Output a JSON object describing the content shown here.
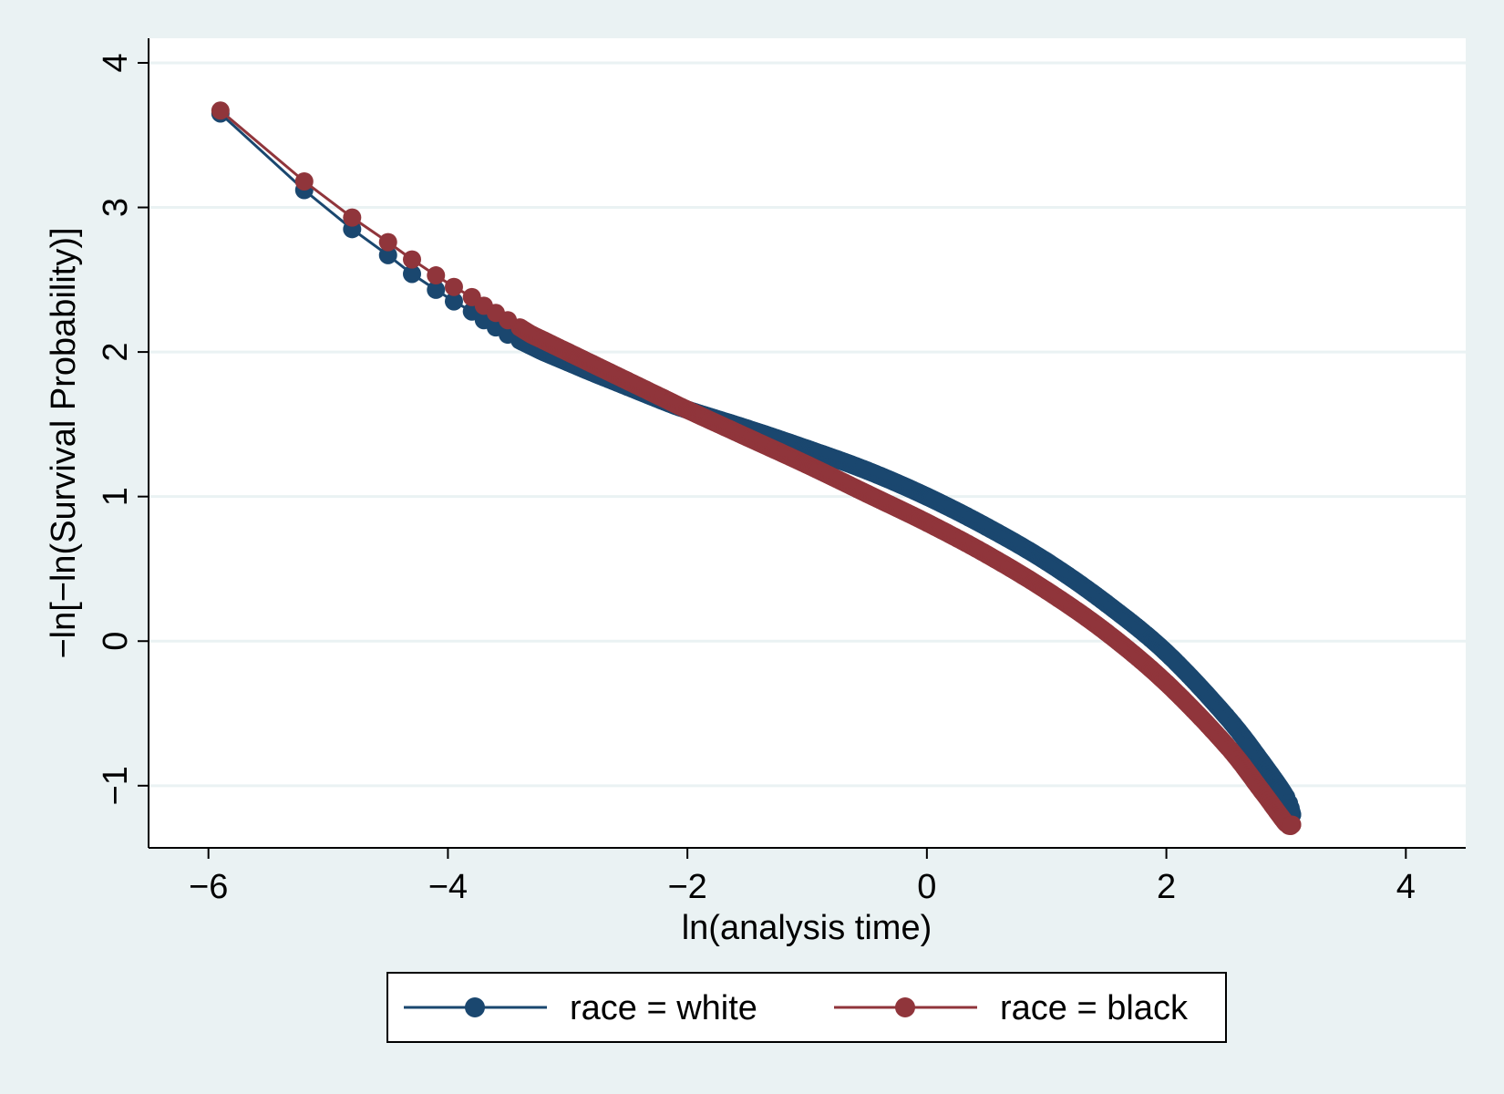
{
  "chart_data": {
    "type": "line",
    "xlabel": "ln(analysis time)",
    "ylabel": "−ln[−ln(Survival Probability)]",
    "xlim": [
      -6.5,
      4.5
    ],
    "ylim": [
      -1.43,
      4.17
    ],
    "x_ticks": [
      -6,
      -4,
      -2,
      0,
      2,
      4
    ],
    "x_tick_labels": [
      "−6",
      "−4",
      "−2",
      "0",
      "2",
      "4"
    ],
    "y_ticks": [
      -1,
      0,
      1,
      2,
      3,
      4
    ],
    "y_tick_labels": [
      "−1",
      "0",
      "1",
      "2",
      "3",
      "4"
    ],
    "grid": "horizontal",
    "legend_position": "bottom",
    "series": [
      {
        "name": "race = white",
        "color": "#1a476f",
        "points": [
          [
            -5.9,
            3.65
          ],
          [
            -5.2,
            3.12
          ],
          [
            -4.8,
            2.85
          ],
          [
            -4.5,
            2.67
          ],
          [
            -4.3,
            2.54
          ],
          [
            -4.1,
            2.43
          ],
          [
            -3.95,
            2.35
          ],
          [
            -3.8,
            2.28
          ],
          [
            -3.7,
            2.22
          ],
          [
            -3.6,
            2.17
          ],
          [
            -3.5,
            2.12
          ],
          [
            -3.4,
            2.08
          ],
          [
            -3.3,
            2.04
          ],
          [
            -3.2,
            2.0
          ],
          [
            -3.0,
            1.93
          ],
          [
            -2.8,
            1.86
          ],
          [
            -2.5,
            1.76
          ],
          [
            -2.2,
            1.66
          ],
          [
            -2.0,
            1.6
          ],
          [
            -1.5,
            1.47
          ],
          [
            -1.0,
            1.33
          ],
          [
            -0.5,
            1.18
          ],
          [
            0.0,
            1.0
          ],
          [
            0.5,
            0.79
          ],
          [
            1.0,
            0.55
          ],
          [
            1.5,
            0.26
          ],
          [
            2.0,
            -0.08
          ],
          [
            2.5,
            -0.52
          ],
          [
            2.8,
            -0.84
          ],
          [
            3.0,
            -1.08
          ],
          [
            3.05,
            -1.2
          ]
        ]
      },
      {
        "name": "race = black",
        "color": "#90353b",
        "points": [
          [
            -5.9,
            3.67
          ],
          [
            -5.2,
            3.18
          ],
          [
            -4.8,
            2.93
          ],
          [
            -4.5,
            2.76
          ],
          [
            -4.3,
            2.64
          ],
          [
            -4.1,
            2.53
          ],
          [
            -3.95,
            2.45
          ],
          [
            -3.8,
            2.38
          ],
          [
            -3.7,
            2.32
          ],
          [
            -3.6,
            2.27
          ],
          [
            -3.5,
            2.22
          ],
          [
            -3.4,
            2.17
          ],
          [
            -3.3,
            2.12
          ],
          [
            -3.2,
            2.08
          ],
          [
            -3.0,
            2.0
          ],
          [
            -2.8,
            1.92
          ],
          [
            -2.5,
            1.8
          ],
          [
            -2.2,
            1.68
          ],
          [
            -2.0,
            1.6
          ],
          [
            -1.5,
            1.41
          ],
          [
            -1.0,
            1.22
          ],
          [
            -0.5,
            1.02
          ],
          [
            0.0,
            0.82
          ],
          [
            0.5,
            0.6
          ],
          [
            1.0,
            0.35
          ],
          [
            1.5,
            0.06
          ],
          [
            2.0,
            -0.29
          ],
          [
            2.5,
            -0.72
          ],
          [
            2.8,
            -1.04
          ],
          [
            3.0,
            -1.26
          ],
          [
            3.05,
            -1.27
          ]
        ]
      }
    ]
  }
}
